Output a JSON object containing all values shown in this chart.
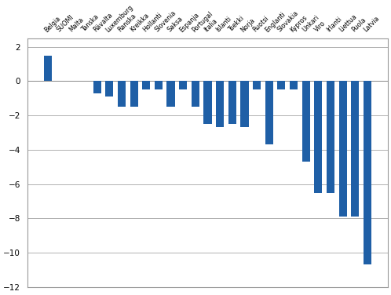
{
  "categories": [
    "Belgia",
    "SUOMI",
    "Malta",
    "Tanska",
    "Rävalta",
    "Luxemburg",
    "Ranska",
    "Kreikka",
    "Hollanti",
    "Slovenia",
    "Saksa",
    "Espanja",
    "Portugal",
    "Italia",
    "Islanti",
    "Tsekki",
    "Norja",
    "Ruotsi",
    "Englanti",
    "Slovakia",
    "Kypros",
    "Unkari",
    "Viro",
    "Irlanti",
    "Liettua",
    "Puola",
    "Latvia"
  ],
  "values": [
    1.5,
    0.0,
    0.0,
    0.0,
    -0.7,
    -0.9,
    -1.5,
    -1.5,
    -0.5,
    -0.5,
    -1.5,
    -0.5,
    -1.5,
    -2.5,
    -2.7,
    -2.5,
    -2.7,
    -0.5,
    -3.7,
    -0.5,
    -0.5,
    -4.7,
    -6.5,
    -6.5,
    -7.9,
    -7.9,
    -10.7
  ],
  "bar_color": "#1f5fa6",
  "background_color": "#ffffff",
  "ylim": [
    -12,
    2.5
  ],
  "yticks": [
    -12,
    -10,
    -8,
    -6,
    -4,
    -2,
    0,
    2
  ],
  "grid_color": "#b0b0b0",
  "bar_width": 0.65,
  "figsize": [
    4.98,
    3.76
  ],
  "dpi": 100
}
